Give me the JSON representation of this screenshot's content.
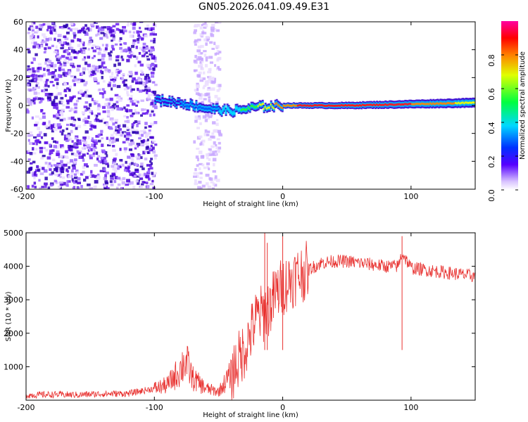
{
  "title": "GN05.2026.041.09.49.E31",
  "colors": {
    "snr_line": "#e8312f",
    "background": "#ffffff",
    "scatter": "#5500ee"
  },
  "chart_data": [
    {
      "type": "heatmap",
      "title": "GN05.2026.041.09.49.E31",
      "xlabel": "Height of straight line (km)",
      "ylabel": "Frequency (Hz)",
      "xlim": [
        -200,
        150
      ],
      "ylim": [
        -60,
        60
      ],
      "xticks": [
        "-200",
        "-100",
        "0",
        "100"
      ],
      "yticks": [
        "60",
        "40",
        "20",
        "0",
        "-20",
        "-40",
        "-60"
      ],
      "colorbar": {
        "label": "Normalized spectral amplitude",
        "range": [
          0,
          1
        ],
        "ticks": [
          "0.0",
          "0.2",
          "0.4",
          "0.6",
          "0.8"
        ]
      },
      "features": [
        {
          "name": "diffuse noise",
          "x_range": [
            -200,
            -100
          ],
          "freq_range": [
            -60,
            60
          ],
          "amplitude": 0.1
        },
        {
          "name": "noise stripe",
          "x_range": [
            -70,
            -50
          ],
          "freq_range": [
            -60,
            60
          ],
          "amplitude": 0.05
        },
        {
          "name": "signal band",
          "x": [
            -100,
            -80,
            -60,
            -40,
            -20,
            0,
            20,
            50,
            100,
            150
          ],
          "freq_center": [
            4,
            2,
            -2,
            -4,
            -1,
            0,
            0,
            0,
            1,
            2
          ],
          "amplitude": [
            0.35,
            0.4,
            0.45,
            0.55,
            0.7,
            0.85,
            0.95,
            0.95,
            0.9,
            0.75
          ]
        }
      ]
    },
    {
      "type": "line",
      "xlabel": "Height of straight line (km)",
      "ylabel": "SNR (10 * v/v)",
      "xlim": [
        -200,
        150
      ],
      "ylim": [
        0,
        5000
      ],
      "xticks": [
        "-200",
        "-100",
        "0",
        "100"
      ],
      "yticks": [
        "5000",
        "4000",
        "3000",
        "2000",
        "1000"
      ],
      "series": [
        {
          "name": "SNR",
          "x": [
            -200,
            -180,
            -160,
            -140,
            -120,
            -100,
            -90,
            -80,
            -76,
            -70,
            -60,
            -50,
            -40,
            -30,
            -20,
            -15,
            -10,
            -5,
            0,
            10,
            20,
            30,
            40,
            50,
            60,
            70,
            80,
            90,
            93,
            100,
            110,
            120,
            130,
            140,
            150
          ],
          "values": [
            150,
            170,
            160,
            190,
            200,
            350,
            450,
            900,
            1200,
            650,
            350,
            250,
            800,
            1500,
            2500,
            2600,
            2800,
            3200,
            3400,
            3700,
            3900,
            4100,
            4150,
            4150,
            4100,
            4050,
            4000,
            4000,
            4400,
            3950,
            3900,
            3850,
            3800,
            3750,
            3700
          ]
        }
      ],
      "spikes": [
        {
          "x": -14,
          "value": 5000
        },
        {
          "x": -12,
          "value": 4700
        },
        {
          "x": 0,
          "value": 4900
        },
        {
          "x": 93,
          "value": 4900
        }
      ]
    }
  ]
}
